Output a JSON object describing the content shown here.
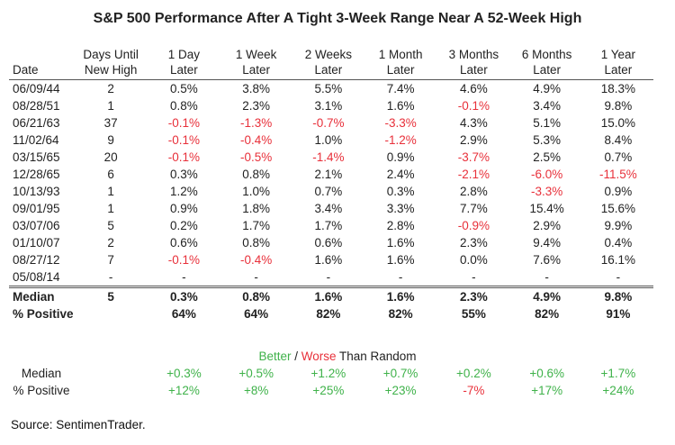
{
  "title": "S&P 500 Performance After A Tight 3-Week Range Near A 52-Week High",
  "headers": [
    [
      "",
      "Date"
    ],
    [
      "Days Until",
      "New High"
    ],
    [
      "1 Day",
      "Later"
    ],
    [
      "1 Week",
      "Later"
    ],
    [
      "2 Weeks",
      "Later"
    ],
    [
      "1 Month",
      "Later"
    ],
    [
      "3 Months",
      "Later"
    ],
    [
      "6 Months",
      "Later"
    ],
    [
      "1 Year",
      "Later"
    ]
  ],
  "rows": [
    [
      "06/09/44",
      "2",
      "0.5%",
      "3.8%",
      "5.5%",
      "7.4%",
      "4.6%",
      "4.9%",
      "18.3%"
    ],
    [
      "08/28/51",
      "1",
      "0.8%",
      "2.3%",
      "3.1%",
      "1.6%",
      "-0.1%",
      "3.4%",
      "9.8%"
    ],
    [
      "06/21/63",
      "37",
      "-0.1%",
      "-1.3%",
      "-0.7%",
      "-3.3%",
      "4.3%",
      "5.1%",
      "15.0%"
    ],
    [
      "11/02/64",
      "9",
      "-0.1%",
      "-0.4%",
      "1.0%",
      "-1.2%",
      "2.9%",
      "5.3%",
      "8.4%"
    ],
    [
      "03/15/65",
      "20",
      "-0.1%",
      "-0.5%",
      "-1.4%",
      "0.9%",
      "-3.7%",
      "2.5%",
      "0.7%"
    ],
    [
      "12/28/65",
      "6",
      "0.3%",
      "0.8%",
      "2.1%",
      "2.4%",
      "-2.1%",
      "-6.0%",
      "-11.5%"
    ],
    [
      "10/13/93",
      "1",
      "1.2%",
      "1.0%",
      "0.7%",
      "0.3%",
      "2.8%",
      "-3.3%",
      "0.9%"
    ],
    [
      "09/01/95",
      "1",
      "0.9%",
      "1.8%",
      "3.4%",
      "3.3%",
      "7.7%",
      "15.4%",
      "15.6%"
    ],
    [
      "03/07/06",
      "5",
      "0.2%",
      "1.7%",
      "1.7%",
      "2.8%",
      "-0.9%",
      "2.9%",
      "9.9%"
    ],
    [
      "01/10/07",
      "2",
      "0.6%",
      "0.8%",
      "0.6%",
      "1.6%",
      "2.3%",
      "9.4%",
      "0.4%"
    ],
    [
      "08/27/12",
      "7",
      "-0.1%",
      "-0.4%",
      "1.6%",
      "1.6%",
      "0.0%",
      "7.6%",
      "16.1%"
    ],
    [
      "05/08/14",
      "-",
      "-",
      "-",
      "-",
      "-",
      "-",
      "-",
      "-"
    ]
  ],
  "summary": {
    "median": [
      "Median",
      "5",
      "0.3%",
      "0.8%",
      "1.6%",
      "1.6%",
      "2.3%",
      "4.9%",
      "9.8%"
    ],
    "positive": [
      "% Positive",
      "",
      "64%",
      "64%",
      "82%",
      "82%",
      "55%",
      "82%",
      "91%"
    ]
  },
  "random": {
    "better": "Better",
    "sep": " / ",
    "worse": "Worse",
    "rest": " Than Random",
    "median": [
      "Median",
      "",
      "+0.3%",
      "+0.5%",
      "+1.2%",
      "+0.7%",
      "+0.2%",
      "+0.6%",
      "+1.7%"
    ],
    "positive": [
      "% Positive",
      "",
      "+12%",
      "+8%",
      "+25%",
      "+23%",
      "-7%",
      "+17%",
      "+24%"
    ]
  },
  "source": "Source: SentimenTrader.",
  "colors": {
    "negative": "#e8303a",
    "better": "#3fb24a",
    "worse": "#e8303a"
  }
}
